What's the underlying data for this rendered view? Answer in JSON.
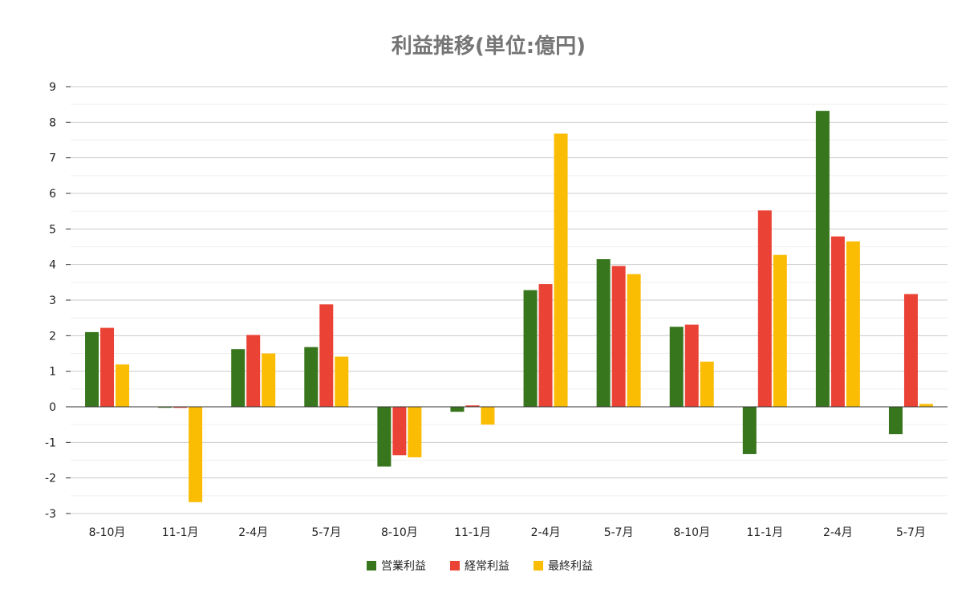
{
  "chart_data": {
    "type": "bar",
    "title": "利益推移(単位:億円)",
    "xlabel": "",
    "ylabel": "",
    "ylim": [
      -3,
      9
    ],
    "yticks": [
      -3,
      -2,
      -1,
      0,
      1,
      2,
      3,
      4,
      5,
      6,
      7,
      8,
      9
    ],
    "grid": true,
    "legend_position": "bottom",
    "categories": [
      "8-10月",
      "11-1月",
      "2-4月",
      "5-7月",
      "8-10月",
      "11-1月",
      "2-4月",
      "5-7月",
      "8-10月",
      "11-1月",
      "2-4月",
      "5-7月"
    ],
    "series": [
      {
        "name": "営業利益",
        "color": "#38761d",
        "values": [
          2.1,
          -0.02,
          1.62,
          1.68,
          -1.68,
          -0.14,
          3.28,
          4.15,
          2.25,
          -1.33,
          8.32,
          -0.77
        ]
      },
      {
        "name": "経常利益",
        "color": "#ea4335",
        "values": [
          2.22,
          -0.03,
          2.02,
          2.88,
          -1.36,
          0.04,
          3.45,
          3.96,
          2.31,
          5.52,
          4.79,
          3.17
        ]
      },
      {
        "name": "最終利益",
        "color": "#fbbc04",
        "values": [
          1.19,
          -2.68,
          1.5,
          1.41,
          -1.42,
          -0.5,
          7.68,
          3.73,
          1.27,
          4.27,
          4.65,
          0.08
        ]
      }
    ]
  }
}
